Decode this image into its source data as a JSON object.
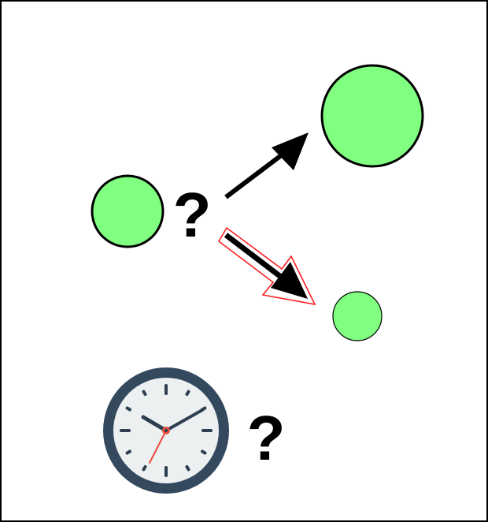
{
  "labels": {
    "growth_question": "?",
    "time_question": "?"
  },
  "colors": {
    "circle_fill": "#80ff80",
    "outline": "#000000",
    "highlight": "#ff2020",
    "clock_rim": "#34495e",
    "clock_face": "#ecf0f1",
    "second_hand": "#e74c3c"
  },
  "icons": {
    "clock": "clock-icon",
    "arrow_up": "arrow-icon",
    "arrow_down": "arrow-icon"
  }
}
